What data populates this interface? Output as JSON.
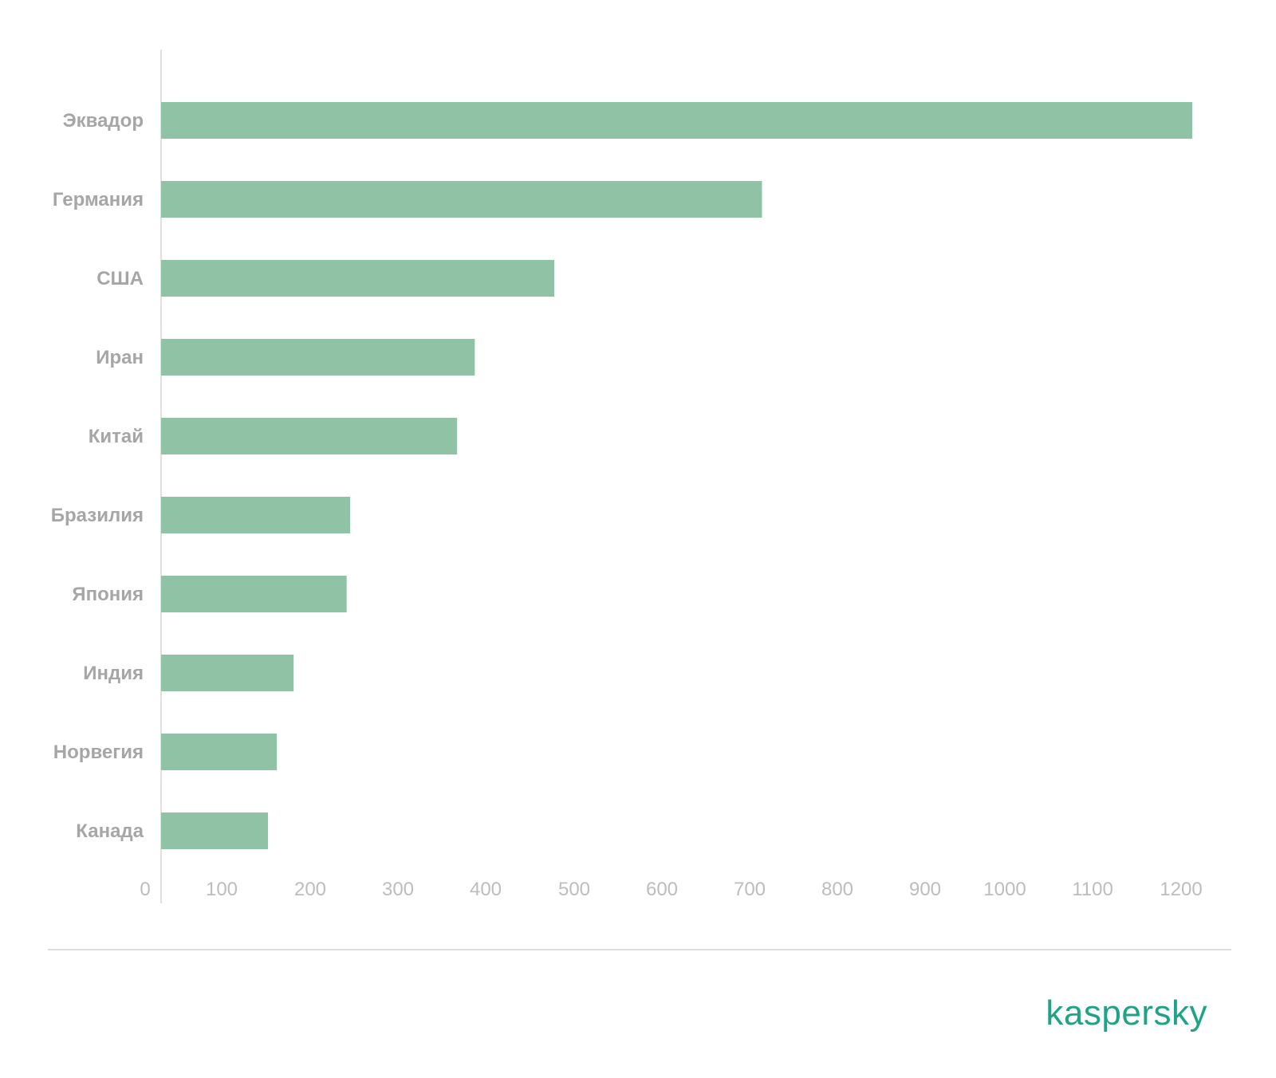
{
  "chart_data": {
    "type": "bar",
    "orientation": "horizontal",
    "categories": [
      "Эквадор",
      "Германия",
      "США",
      "Иран",
      "Китай",
      "Бразилия",
      "Япония",
      "Индия",
      "Норвегия",
      "Канада"
    ],
    "values": [
      1167,
      680,
      445,
      355,
      335,
      214,
      210,
      150,
      131,
      121
    ],
    "x_ticks": [
      "0",
      "100",
      "200",
      "300",
      "400",
      "500",
      "600",
      "700",
      "800",
      "900",
      "1000",
      "1100",
      "1200"
    ],
    "xlim": [
      0,
      1200
    ],
    "grid": false,
    "bar_color": "#90c2a6"
  },
  "brand": {
    "logo_text": "kaspersky",
    "color": "#1fa386"
  }
}
